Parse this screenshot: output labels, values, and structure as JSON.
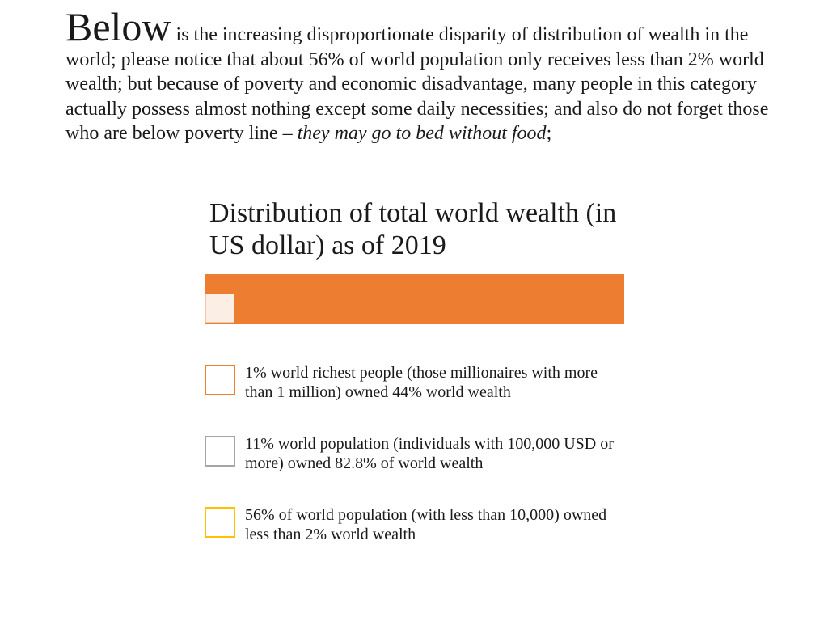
{
  "intro": {
    "lead_word": "Below",
    "text": " is the increasing disproportionate disparity of distribution of wealth in the world; please notice that about 56% of world population only receives less than 2% world wealth; but because of poverty and economic disadvantage, many people in this category actually possess almost nothing except some daily necessities; and also do not forget those who are below poverty line – ",
    "italic_text": "they may go to bed without food",
    "end_text": ";"
  },
  "chart_data": {
    "type": "bar",
    "title": "Distribution of total world wealth (in US dollar) as of 2019",
    "colors": {
      "bar": "#ed7d31",
      "bar_swatch": "#fbeee5"
    },
    "legend": [
      {
        "label": "1% world richest people (those millionaires with more than 1 million) owned 44% world wealth",
        "color": "#ed7d31"
      },
      {
        "label": "11% world population (individuals with 100,000 USD or more) owned 82.8% of world wealth",
        "color": "#a5a5a5"
      },
      {
        "label": "56% of world population (with less than 10,000) owned less than 2% world wealth",
        "color": "#ffc000"
      }
    ]
  }
}
